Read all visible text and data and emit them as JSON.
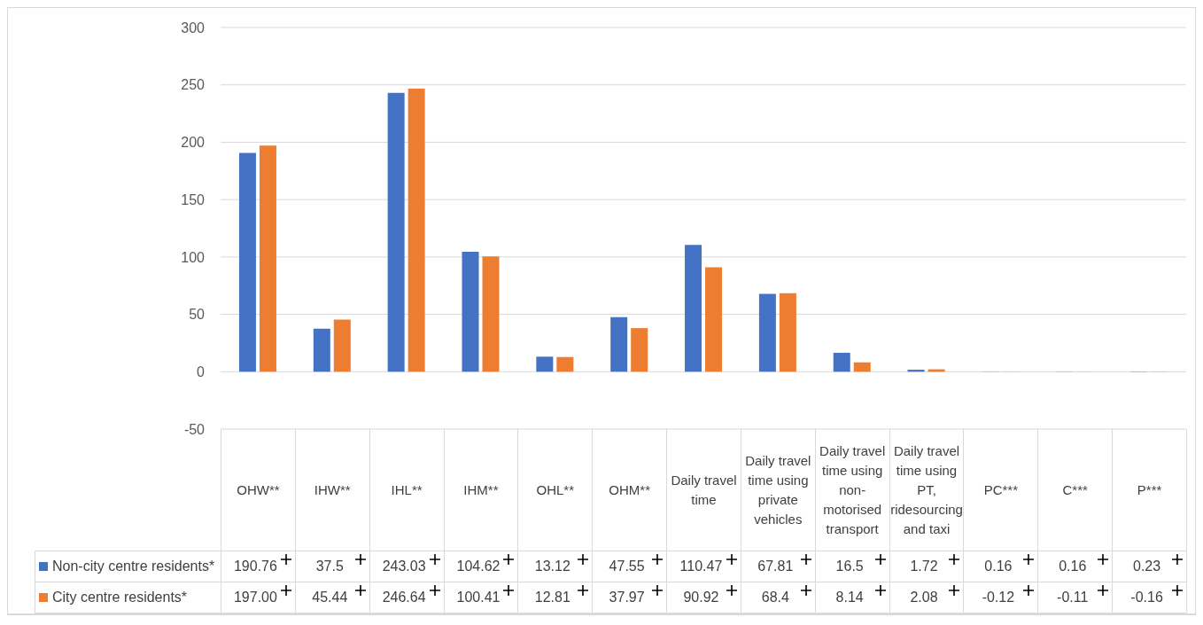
{
  "chart_data": {
    "type": "bar",
    "categories": [
      "OHW**",
      "IHW**",
      "IHL**",
      "IHM**",
      "OHL**",
      "OHM**",
      "Daily travel time",
      "Daily travel time using private vehicles",
      "Daily travel time using non-motorised transport",
      "Daily travel time using PT, ridesourcing and taxi",
      "PC***",
      "C***",
      "P***"
    ],
    "series": [
      {
        "name": "Non-city centre residents*",
        "color": "#4472c4",
        "values": [
          190.76,
          37.5,
          243.03,
          104.62,
          13.12,
          47.55,
          110.47,
          67.81,
          16.5,
          1.72,
          0.16,
          0.16,
          0.23
        ],
        "value_labels": [
          "190.76",
          "37.5",
          "243.03",
          "104.62",
          "13.12",
          "47.55",
          "110.47",
          "67.81",
          "16.5",
          "1.72",
          "0.16",
          "0.16",
          "0.23"
        ]
      },
      {
        "name": "City centre residents*",
        "color": "#ed7d31",
        "values": [
          197.0,
          45.44,
          246.64,
          100.41,
          12.81,
          37.97,
          90.92,
          68.4,
          8.14,
          2.08,
          -0.12,
          -0.11,
          -0.16
        ],
        "value_labels": [
          "197.00",
          "45.44",
          "246.64",
          "100.41",
          "12.81",
          "37.97",
          "90.92",
          "68.4",
          "8.14",
          "2.08",
          "-0.12",
          "-0.11",
          "-0.16"
        ]
      }
    ],
    "ylim": [
      -50,
      300
    ],
    "yticks": [
      -50,
      0,
      50,
      100,
      150,
      200,
      250,
      300
    ],
    "grid": "y",
    "legend": "bottom"
  }
}
